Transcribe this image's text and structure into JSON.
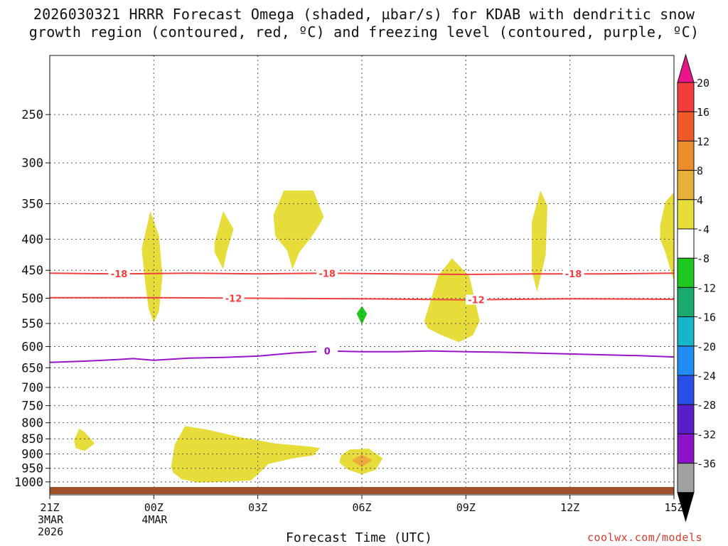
{
  "chart_data": {
    "type": "heatmap",
    "title_line1": "2026030321 HRRR Forecast Omega (shaded, µbar/s) for KDAB with dendritic snow",
    "title_line2": "growth region (contoured, red, ºC) and freezing level (contoured, purple, ºC)",
    "xlabel": "Forecast Time (UTC)",
    "x_ticks": [
      {
        "hour": 0,
        "label": "21Z",
        "sub1": "3MAR",
        "sub2": "2026"
      },
      {
        "hour": 3,
        "label": "00Z",
        "sub1": "4MAR",
        "sub2": ""
      },
      {
        "hour": 6,
        "label": "03Z",
        "sub1": "",
        "sub2": ""
      },
      {
        "hour": 9,
        "label": "06Z",
        "sub1": "",
        "sub2": ""
      },
      {
        "hour": 12,
        "label": "09Z",
        "sub1": "",
        "sub2": ""
      },
      {
        "hour": 15,
        "label": "12Z",
        "sub1": "",
        "sub2": ""
      },
      {
        "hour": 18,
        "label": "15Z",
        "sub1": "",
        "sub2": ""
      }
    ],
    "x_range_hours": [
      0,
      18
    ],
    "y_axis": "pressure (hPa), log scale, inverted",
    "y_range": [
      1050,
      200
    ],
    "y_ticks": [
      250,
      300,
      350,
      400,
      450,
      500,
      550,
      600,
      650,
      700,
      750,
      800,
      850,
      900,
      950,
      1000
    ],
    "colorbar": {
      "labels": [
        "20",
        "16",
        "12",
        "8",
        "4",
        "-4",
        "-8",
        "-12",
        "-16",
        "-20",
        "-24",
        "-28",
        "-32",
        "-36"
      ],
      "colors": [
        "#e8168a",
        "#f03c3c",
        "#f05a2a",
        "#ec8c2a",
        "#e6b03a",
        "#e6dc3a",
        "#ffffff",
        "#1ec81e",
        "#1aaa6e",
        "#18b4c8",
        "#1e8cf0",
        "#2850e6",
        "#5a1ec8",
        "#8c14c8",
        "#a0a0a0",
        "#000000"
      ]
    },
    "series": [
      {
        "name": "Dendritic -18 ºC",
        "color": "#f04040",
        "label": "-18",
        "points": [
          [
            0,
            455
          ],
          [
            2,
            456
          ],
          [
            4,
            455
          ],
          [
            6,
            456
          ],
          [
            8,
            455
          ],
          [
            10,
            456
          ],
          [
            12,
            457
          ],
          [
            14,
            456
          ],
          [
            16,
            456
          ],
          [
            18,
            455
          ]
        ],
        "label_at_hours": [
          2.0,
          8.0,
          15.1
        ]
      },
      {
        "name": "Dendritic -12 ºC",
        "color": "#f04040",
        "label": "-12",
        "points": [
          [
            0,
            499
          ],
          [
            3,
            499
          ],
          [
            6,
            500
          ],
          [
            9,
            501
          ],
          [
            12,
            503
          ],
          [
            15,
            501
          ],
          [
            18,
            502
          ]
        ],
        "label_at_hours": [
          5.3,
          12.3
        ]
      },
      {
        "name": "Freezing level 0 ºC",
        "color": "#9a14c8",
        "label": "0",
        "points": [
          [
            0,
            637
          ],
          [
            1,
            634
          ],
          [
            2,
            630
          ],
          [
            2.4,
            628
          ],
          [
            3,
            632
          ],
          [
            4,
            627
          ],
          [
            5,
            625
          ],
          [
            6,
            622
          ],
          [
            7,
            615
          ],
          [
            8,
            610
          ],
          [
            9,
            612
          ],
          [
            10,
            612
          ],
          [
            11,
            610
          ],
          [
            12,
            612
          ],
          [
            13,
            613
          ],
          [
            14,
            615
          ],
          [
            15,
            617
          ],
          [
            16,
            619
          ],
          [
            17,
            621
          ],
          [
            18,
            624
          ]
        ],
        "label_at_hours": [
          8.0
        ]
      }
    ],
    "omega_regions": [
      {
        "range": "4 to 8",
        "color": "#e6dc3a",
        "points": [
          [
            2.65,
            415
          ],
          [
            2.9,
            360
          ],
          [
            3.15,
            395
          ],
          [
            3.25,
            460
          ],
          [
            3.15,
            525
          ],
          [
            3.0,
            548
          ],
          [
            2.85,
            520
          ],
          [
            2.75,
            470
          ]
        ]
      },
      {
        "range": "4 to 8",
        "color": "#e6dc3a",
        "points": [
          [
            4.75,
            405
          ],
          [
            5.0,
            360
          ],
          [
            5.3,
            385
          ],
          [
            5.1,
            420
          ],
          [
            5.0,
            448
          ],
          [
            4.75,
            420
          ]
        ]
      },
      {
        "range": "4 to 8",
        "color": "#e6dc3a",
        "points": [
          [
            6.45,
            365
          ],
          [
            6.75,
            333
          ],
          [
            7.6,
            333
          ],
          [
            7.9,
            368
          ],
          [
            7.7,
            385
          ],
          [
            7.5,
            400
          ],
          [
            7.2,
            420
          ],
          [
            7.0,
            448
          ],
          [
            6.85,
            418
          ],
          [
            6.5,
            395
          ]
        ]
      },
      {
        "range": "-4 to -8",
        "color": "#1ec81e",
        "points": [
          [
            9.0,
            515
          ],
          [
            9.15,
            530
          ],
          [
            9.0,
            552
          ],
          [
            8.85,
            530
          ]
        ]
      },
      {
        "range": "4 to 8",
        "color": "#e6dc3a",
        "points": [
          [
            10.8,
            545
          ],
          [
            11.2,
            460
          ],
          [
            11.6,
            430
          ],
          [
            12.1,
            460
          ],
          [
            12.4,
            545
          ],
          [
            12.2,
            575
          ],
          [
            11.8,
            590
          ],
          [
            11.3,
            575
          ],
          [
            10.9,
            560
          ]
        ]
      },
      {
        "range": "4 to 8",
        "color": "#e6dc3a",
        "points": [
          [
            13.9,
            375
          ],
          [
            14.15,
            333
          ],
          [
            14.35,
            353
          ],
          [
            14.3,
            425
          ],
          [
            14.2,
            450
          ],
          [
            14.05,
            488
          ],
          [
            13.9,
            450
          ]
        ]
      },
      {
        "range": "4 to 8",
        "color": "#e6dc3a",
        "points": [
          [
            17.6,
            380
          ],
          [
            17.75,
            348
          ],
          [
            18.0,
            335
          ],
          [
            18.0,
            470
          ],
          [
            17.75,
            420
          ],
          [
            17.6,
            400
          ]
        ]
      },
      {
        "range": "4 to 8",
        "color": "#e6dc3a",
        "points": [
          [
            0.7,
            855
          ],
          [
            0.85,
            818
          ],
          [
            1.0,
            828
          ],
          [
            1.3,
            865
          ],
          [
            1.0,
            890
          ],
          [
            0.75,
            880
          ]
        ]
      },
      {
        "range": "4 to 8",
        "color": "#e6dc3a",
        "points": [
          [
            3.5,
            945
          ],
          [
            3.6,
            870
          ],
          [
            3.9,
            810
          ],
          [
            4.5,
            820
          ],
          [
            5.5,
            845
          ],
          [
            6.5,
            865
          ],
          [
            7.5,
            875
          ],
          [
            7.8,
            880
          ],
          [
            7.6,
            905
          ],
          [
            7.0,
            915
          ],
          [
            6.3,
            935
          ],
          [
            6.1,
            960
          ],
          [
            5.8,
            995
          ],
          [
            5.0,
            1000
          ],
          [
            4.3,
            1002
          ],
          [
            3.8,
            990
          ],
          [
            3.55,
            965
          ]
        ]
      },
      {
        "range": "4 to 8",
        "color": "#e6dc3a",
        "points": [
          [
            8.4,
            905
          ],
          [
            8.65,
            885
          ],
          [
            9.2,
            882
          ],
          [
            9.6,
            915
          ],
          [
            9.4,
            955
          ],
          [
            9.0,
            972
          ],
          [
            8.6,
            955
          ],
          [
            8.35,
            930
          ]
        ]
      },
      {
        "range": "8 to 12",
        "color": "#ecab3a",
        "points": [
          [
            8.7,
            922
          ],
          [
            9.0,
            902
          ],
          [
            9.3,
            922
          ],
          [
            9.0,
            945
          ]
        ]
      }
    ],
    "surface_band": {
      "color": "#a0522d"
    }
  },
  "credit": "coolwx.com/models"
}
